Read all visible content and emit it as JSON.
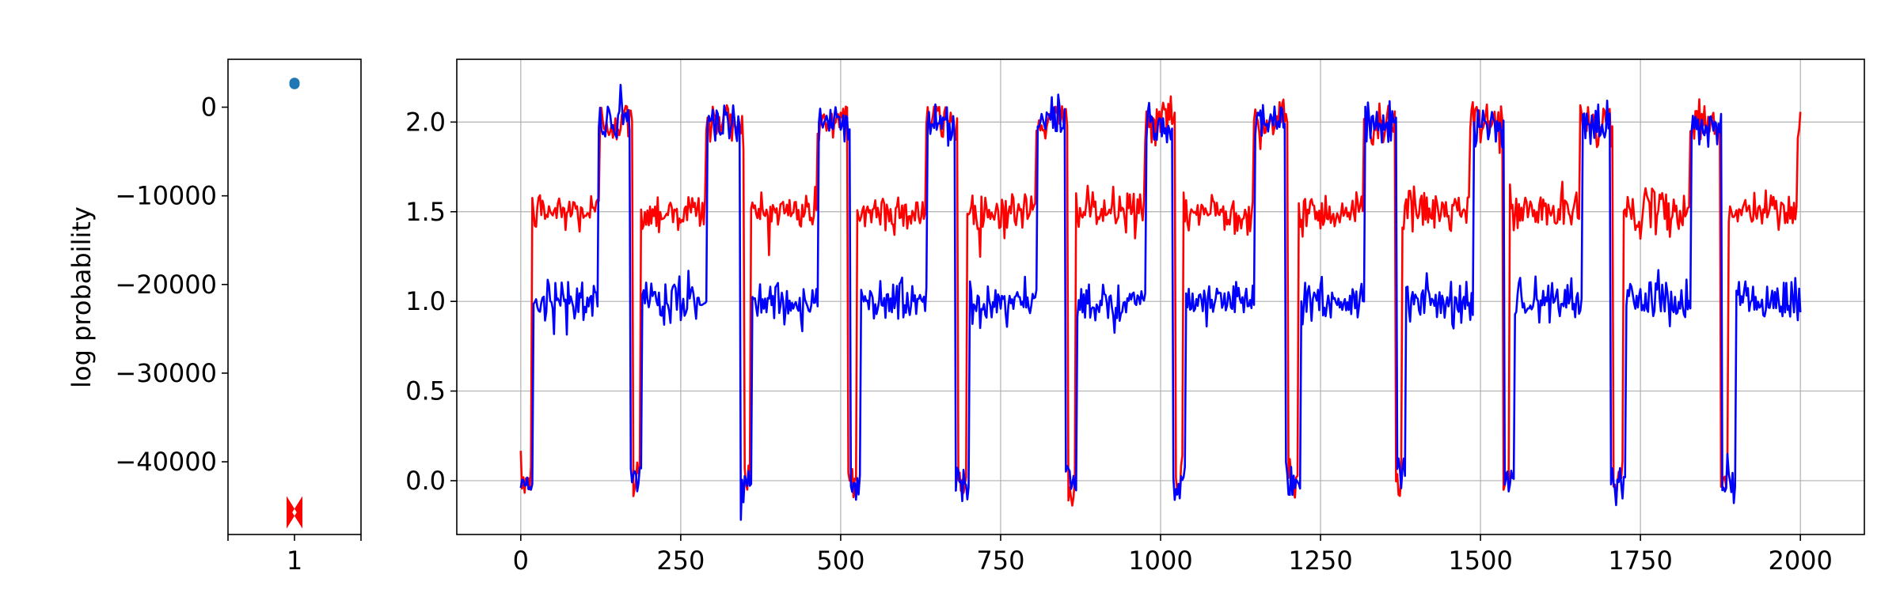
{
  "chart_data": [
    {
      "type": "scatter",
      "title": "",
      "xlabel": "",
      "ylabel": "log probability",
      "xticks": [
        "1"
      ],
      "yticks": [
        0,
        -10000,
        -20000,
        -30000,
        -40000
      ],
      "ytick_labels": [
        "0",
        "−10000",
        "−20000",
        "−30000",
        "−40000"
      ],
      "xlim": [
        0.5,
        1.5
      ],
      "ylim": [
        -48200,
        5400
      ],
      "grid": false,
      "series": [
        {
          "marker": "circle",
          "color": "#1f77b4",
          "points": [
            {
              "x": 1,
              "y": 2600
            },
            {
              "x": 1,
              "y": 2750
            }
          ]
        },
        {
          "marker": "bowtie",
          "color": "#ff0000",
          "points": [
            {
              "x": 1,
              "y": -45300
            },
            {
              "x": 1,
              "y": -46100
            }
          ]
        }
      ]
    },
    {
      "type": "line",
      "title": "",
      "xlabel": "",
      "ylabel": "",
      "xlim": [
        -100,
        2100
      ],
      "ylim": [
        -0.3,
        2.35
      ],
      "xticks": [
        0,
        250,
        500,
        750,
        1000,
        1250,
        1500,
        1750,
        2000
      ],
      "yticks": [
        0.0,
        0.5,
        1.0,
        1.5,
        2.0
      ],
      "ytick_labels": [
        "0.0",
        "0.5",
        "1.0",
        "1.5",
        "2.0"
      ],
      "grid": true,
      "noise_std": 0.06,
      "series": [
        {
          "color": "#ff0000",
          "segments": [
            [
              0,
              18,
              0.0
            ],
            [
              18,
              123,
              1.5
            ],
            [
              123,
              176,
              2.0
            ],
            [
              176,
              188,
              0.0
            ],
            [
              188,
              290,
              1.5
            ],
            [
              290,
              350,
              2.0
            ],
            [
              350,
              360,
              0.0
            ],
            [
              360,
              463,
              1.5
            ],
            [
              463,
              512,
              2.0
            ],
            [
              512,
              525,
              0.0
            ],
            [
              525,
              633,
              1.5
            ],
            [
              633,
              683,
              2.0
            ],
            [
              683,
              697,
              0.0
            ],
            [
              697,
              805,
              1.5
            ],
            [
              805,
              855,
              2.0
            ],
            [
              855,
              867,
              0.0
            ],
            [
              867,
              975,
              1.5
            ],
            [
              975,
              1024,
              2.0
            ],
            [
              1024,
              1035,
              0.0
            ],
            [
              1035,
              1145,
              1.5
            ],
            [
              1145,
              1200,
              2.0
            ],
            [
              1200,
              1215,
              0.0
            ],
            [
              1215,
              1318,
              1.5
            ],
            [
              1318,
              1367,
              2.0
            ],
            [
              1367,
              1378,
              0.0
            ],
            [
              1378,
              1483,
              1.5
            ],
            [
              1483,
              1535,
              2.0
            ],
            [
              1535,
              1545,
              0.0
            ],
            [
              1545,
              1655,
              1.5
            ],
            [
              1655,
              1707,
              2.0
            ],
            [
              1707,
              1723,
              0.0
            ],
            [
              1723,
              1827,
              1.5
            ],
            [
              1827,
              1875,
              2.0
            ],
            [
              1875,
              1887,
              0.0
            ],
            [
              1887,
              1995,
              1.5
            ],
            [
              1995,
              2000,
              2.0
            ]
          ]
        },
        {
          "color": "#0000ff",
          "segments": [
            [
              0,
              20,
              0.0
            ],
            [
              20,
              122,
              1.0
            ],
            [
              122,
              172,
              2.0
            ],
            [
              172,
              190,
              0.0
            ],
            [
              190,
              292,
              1.0
            ],
            [
              292,
              343,
              2.0
            ],
            [
              343,
              362,
              0.0
            ],
            [
              362,
              465,
              1.0
            ],
            [
              465,
              515,
              2.0
            ],
            [
              515,
              532,
              0.0
            ],
            [
              532,
              635,
              1.0
            ],
            [
              635,
              680,
              2.0
            ],
            [
              680,
              702,
              0.0
            ],
            [
              702,
              808,
              1.0
            ],
            [
              808,
              852,
              2.0
            ],
            [
              852,
              870,
              0.0
            ],
            [
              870,
              978,
              1.0
            ],
            [
              978,
              1020,
              2.0
            ],
            [
              1020,
              1040,
              0.0
            ],
            [
              1040,
              1148,
              1.0
            ],
            [
              1148,
              1195,
              2.0
            ],
            [
              1195,
              1220,
              0.0
            ],
            [
              1220,
              1320,
              1.0
            ],
            [
              1320,
              1370,
              2.0
            ],
            [
              1370,
              1384,
              0.0
            ],
            [
              1384,
              1490,
              1.0
            ],
            [
              1490,
              1537,
              2.0
            ],
            [
              1537,
              1553,
              0.0
            ],
            [
              1553,
              1660,
              1.0
            ],
            [
              1660,
              1703,
              2.0
            ],
            [
              1703,
              1727,
              0.0
            ],
            [
              1727,
              1830,
              1.0
            ],
            [
              1830,
              1878,
              2.0
            ],
            [
              1878,
              1900,
              0.0
            ],
            [
              1900,
              2000,
              1.0
            ]
          ]
        }
      ]
    }
  ]
}
